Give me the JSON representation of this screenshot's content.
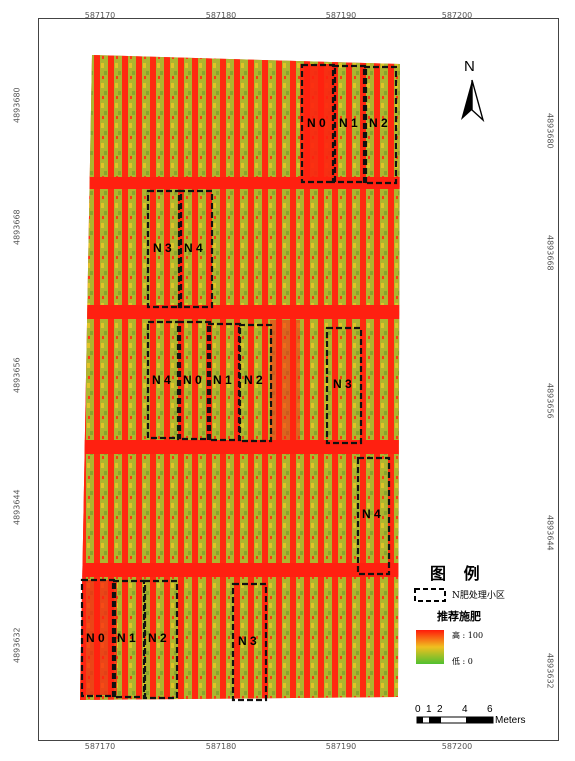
{
  "axes": {
    "x_ticks_top": [
      "587170",
      "587180",
      "587190",
      "587200"
    ],
    "x_ticks_bottom": [
      "587170",
      "587180",
      "587190",
      "587200"
    ],
    "y_ticks_left": [
      "4893680",
      "4893668",
      "4893656",
      "4893644",
      "4893632"
    ],
    "y_ticks_right": [
      "4893680",
      "4893668",
      "4893656",
      "4893644",
      "4893632"
    ]
  },
  "north_arrow": {
    "label": "N",
    "icon": "north-arrow-icon"
  },
  "plots": [
    {
      "label": "N 0"
    },
    {
      "label": "N 1"
    },
    {
      "label": "N 2"
    },
    {
      "label": "N 3"
    },
    {
      "label": "N 4"
    },
    {
      "label": "N 4"
    },
    {
      "label": "N 0"
    },
    {
      "label": "N 1"
    },
    {
      "label": "N 2"
    },
    {
      "label": "N 3"
    },
    {
      "label": "N 4"
    },
    {
      "label": "N 0"
    },
    {
      "label": "N 1"
    },
    {
      "label": "N 2"
    },
    {
      "label": "N 3"
    }
  ],
  "legend": {
    "title": "图 例",
    "plot_item": "N肥处理小区",
    "recommend_title": "推荐施肥",
    "high": "高 : 100",
    "low": "低 : 0"
  },
  "scale": {
    "ticks": [
      "0",
      "1",
      "2",
      "4",
      "6"
    ],
    "unit": "Meters"
  },
  "colors": {
    "high": "#ff1a0a",
    "mid": "#c8d02a",
    "low": "#7ab42a"
  }
}
